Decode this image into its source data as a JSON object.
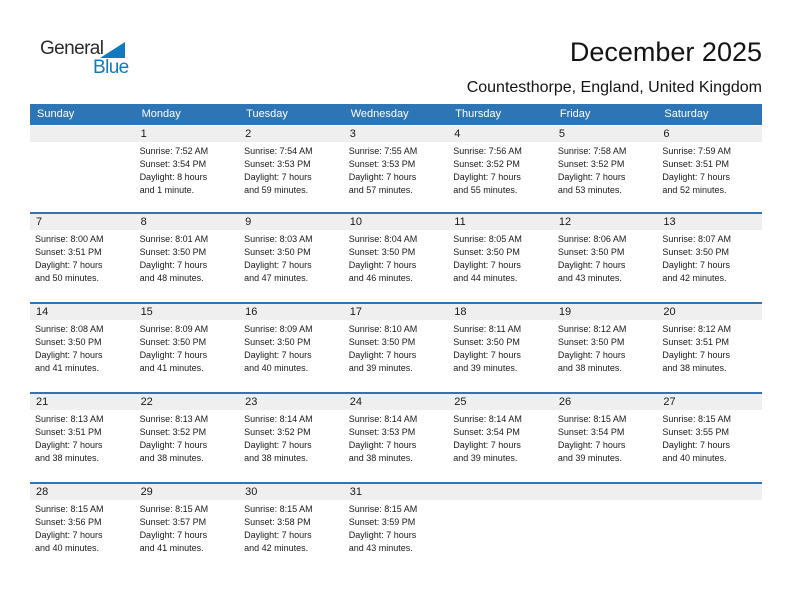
{
  "logo": {
    "text_general": "General",
    "text_blue": "Blue"
  },
  "header": {
    "title": "December 2025",
    "subtitle": "Countesthorpe, England, United Kingdom"
  },
  "weekdays": [
    "Sunday",
    "Monday",
    "Tuesday",
    "Wednesday",
    "Thursday",
    "Friday",
    "Saturday"
  ],
  "colors": {
    "header_bar_blue": "#2E75B6",
    "week_separator_blue": "#2E75B6",
    "day_band_gray": "#EFEFEF",
    "logo_blue": "#1279BF",
    "weekday_text": "#FFFFFF",
    "body_text": "#1A1A1A"
  },
  "weeks": [
    [
      null,
      {
        "day": "1",
        "sunrise": "Sunrise: 7:52 AM",
        "sunset": "Sunset: 3:54 PM",
        "daylight1": "Daylight: 8 hours",
        "daylight2": "and 1 minute."
      },
      {
        "day": "2",
        "sunrise": "Sunrise: 7:54 AM",
        "sunset": "Sunset: 3:53 PM",
        "daylight1": "Daylight: 7 hours",
        "daylight2": "and 59 minutes."
      },
      {
        "day": "3",
        "sunrise": "Sunrise: 7:55 AM",
        "sunset": "Sunset: 3:53 PM",
        "daylight1": "Daylight: 7 hours",
        "daylight2": "and 57 minutes."
      },
      {
        "day": "4",
        "sunrise": "Sunrise: 7:56 AM",
        "sunset": "Sunset: 3:52 PM",
        "daylight1": "Daylight: 7 hours",
        "daylight2": "and 55 minutes."
      },
      {
        "day": "5",
        "sunrise": "Sunrise: 7:58 AM",
        "sunset": "Sunset: 3:52 PM",
        "daylight1": "Daylight: 7 hours",
        "daylight2": "and 53 minutes."
      },
      {
        "day": "6",
        "sunrise": "Sunrise: 7:59 AM",
        "sunset": "Sunset: 3:51 PM",
        "daylight1": "Daylight: 7 hours",
        "daylight2": "and 52 minutes."
      }
    ],
    [
      {
        "day": "7",
        "sunrise": "Sunrise: 8:00 AM",
        "sunset": "Sunset: 3:51 PM",
        "daylight1": "Daylight: 7 hours",
        "daylight2": "and 50 minutes."
      },
      {
        "day": "8",
        "sunrise": "Sunrise: 8:01 AM",
        "sunset": "Sunset: 3:50 PM",
        "daylight1": "Daylight: 7 hours",
        "daylight2": "and 48 minutes."
      },
      {
        "day": "9",
        "sunrise": "Sunrise: 8:03 AM",
        "sunset": "Sunset: 3:50 PM",
        "daylight1": "Daylight: 7 hours",
        "daylight2": "and 47 minutes."
      },
      {
        "day": "10",
        "sunrise": "Sunrise: 8:04 AM",
        "sunset": "Sunset: 3:50 PM",
        "daylight1": "Daylight: 7 hours",
        "daylight2": "and 46 minutes."
      },
      {
        "day": "11",
        "sunrise": "Sunrise: 8:05 AM",
        "sunset": "Sunset: 3:50 PM",
        "daylight1": "Daylight: 7 hours",
        "daylight2": "and 44 minutes."
      },
      {
        "day": "12",
        "sunrise": "Sunrise: 8:06 AM",
        "sunset": "Sunset: 3:50 PM",
        "daylight1": "Daylight: 7 hours",
        "daylight2": "and 43 minutes."
      },
      {
        "day": "13",
        "sunrise": "Sunrise: 8:07 AM",
        "sunset": "Sunset: 3:50 PM",
        "daylight1": "Daylight: 7 hours",
        "daylight2": "and 42 minutes."
      }
    ],
    [
      {
        "day": "14",
        "sunrise": "Sunrise: 8:08 AM",
        "sunset": "Sunset: 3:50 PM",
        "daylight1": "Daylight: 7 hours",
        "daylight2": "and 41 minutes."
      },
      {
        "day": "15",
        "sunrise": "Sunrise: 8:09 AM",
        "sunset": "Sunset: 3:50 PM",
        "daylight1": "Daylight: 7 hours",
        "daylight2": "and 41 minutes."
      },
      {
        "day": "16",
        "sunrise": "Sunrise: 8:09 AM",
        "sunset": "Sunset: 3:50 PM",
        "daylight1": "Daylight: 7 hours",
        "daylight2": "and 40 minutes."
      },
      {
        "day": "17",
        "sunrise": "Sunrise: 8:10 AM",
        "sunset": "Sunset: 3:50 PM",
        "daylight1": "Daylight: 7 hours",
        "daylight2": "and 39 minutes."
      },
      {
        "day": "18",
        "sunrise": "Sunrise: 8:11 AM",
        "sunset": "Sunset: 3:50 PM",
        "daylight1": "Daylight: 7 hours",
        "daylight2": "and 39 minutes."
      },
      {
        "day": "19",
        "sunrise": "Sunrise: 8:12 AM",
        "sunset": "Sunset: 3:50 PM",
        "daylight1": "Daylight: 7 hours",
        "daylight2": "and 38 minutes."
      },
      {
        "day": "20",
        "sunrise": "Sunrise: 8:12 AM",
        "sunset": "Sunset: 3:51 PM",
        "daylight1": "Daylight: 7 hours",
        "daylight2": "and 38 minutes."
      }
    ],
    [
      {
        "day": "21",
        "sunrise": "Sunrise: 8:13 AM",
        "sunset": "Sunset: 3:51 PM",
        "daylight1": "Daylight: 7 hours",
        "daylight2": "and 38 minutes."
      },
      {
        "day": "22",
        "sunrise": "Sunrise: 8:13 AM",
        "sunset": "Sunset: 3:52 PM",
        "daylight1": "Daylight: 7 hours",
        "daylight2": "and 38 minutes."
      },
      {
        "day": "23",
        "sunrise": "Sunrise: 8:14 AM",
        "sunset": "Sunset: 3:52 PM",
        "daylight1": "Daylight: 7 hours",
        "daylight2": "and 38 minutes."
      },
      {
        "day": "24",
        "sunrise": "Sunrise: 8:14 AM",
        "sunset": "Sunset: 3:53 PM",
        "daylight1": "Daylight: 7 hours",
        "daylight2": "and 38 minutes."
      },
      {
        "day": "25",
        "sunrise": "Sunrise: 8:14 AM",
        "sunset": "Sunset: 3:54 PM",
        "daylight1": "Daylight: 7 hours",
        "daylight2": "and 39 minutes."
      },
      {
        "day": "26",
        "sunrise": "Sunrise: 8:15 AM",
        "sunset": "Sunset: 3:54 PM",
        "daylight1": "Daylight: 7 hours",
        "daylight2": "and 39 minutes."
      },
      {
        "day": "27",
        "sunrise": "Sunrise: 8:15 AM",
        "sunset": "Sunset: 3:55 PM",
        "daylight1": "Daylight: 7 hours",
        "daylight2": "and 40 minutes."
      }
    ],
    [
      {
        "day": "28",
        "sunrise": "Sunrise: 8:15 AM",
        "sunset": "Sunset: 3:56 PM",
        "daylight1": "Daylight: 7 hours",
        "daylight2": "and 40 minutes."
      },
      {
        "day": "29",
        "sunrise": "Sunrise: 8:15 AM",
        "sunset": "Sunset: 3:57 PM",
        "daylight1": "Daylight: 7 hours",
        "daylight2": "and 41 minutes."
      },
      {
        "day": "30",
        "sunrise": "Sunrise: 8:15 AM",
        "sunset": "Sunset: 3:58 PM",
        "daylight1": "Daylight: 7 hours",
        "daylight2": "and 42 minutes."
      },
      {
        "day": "31",
        "sunrise": "Sunrise: 8:15 AM",
        "sunset": "Sunset: 3:59 PM",
        "daylight1": "Daylight: 7 hours",
        "daylight2": "and 43 minutes."
      },
      null,
      null,
      null
    ]
  ]
}
